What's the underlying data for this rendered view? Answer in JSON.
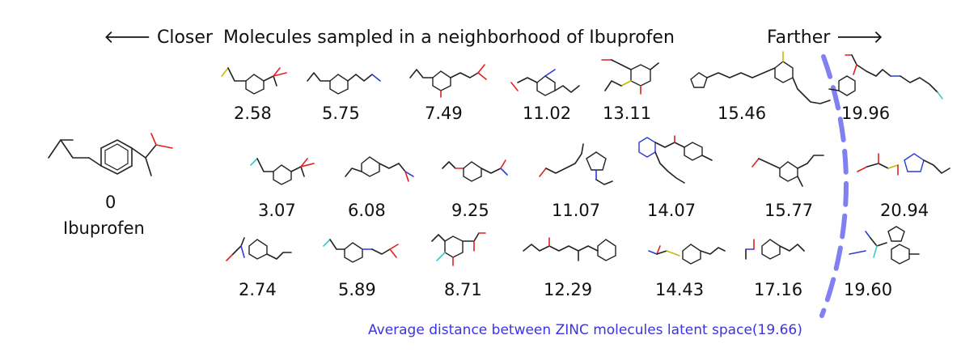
{
  "header": {
    "closer_label": "🡐 Closer",
    "title": "Molecules sampled in a neighborhood of Ibuprofen",
    "farther_label": "Farther 🡒"
  },
  "reference": {
    "distance": "0",
    "name": "Ibuprofen"
  },
  "distances": {
    "row1": [
      "2.58",
      "5.75",
      "7.49",
      "11.02",
      "13.11",
      "15.46",
      "19.96"
    ],
    "row2": [
      "3.07",
      "6.08",
      "9.25",
      "11.07",
      "14.07",
      "15.77",
      "20.94"
    ],
    "row3": [
      "2.74",
      "5.89",
      "8.71",
      "12.29",
      "14.43",
      "17.16",
      "19.60"
    ]
  },
  "average_note": "Average distance between ZINC molecules latent space(19.66)",
  "colors": {
    "boundary": "#8080f0",
    "note": "#3b33e6",
    "oxygen": "#e02020",
    "nitrogen": "#2a3bd8"
  }
}
